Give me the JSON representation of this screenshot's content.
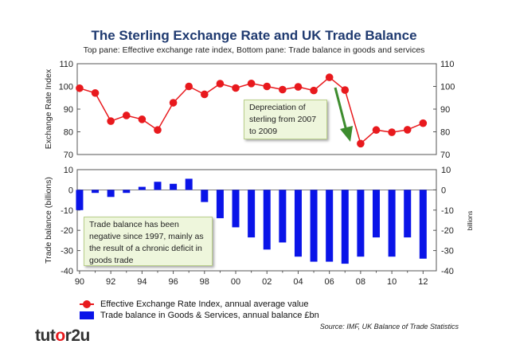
{
  "title": "The Sterling Exchange Rate and UK Trade Balance",
  "subtitle": "Top pane: Effective exchange rate index, Bottom pane: Trade balance in goods and services",
  "chart_data": [
    {
      "type": "line",
      "ylabel": "Exchange Rate Index",
      "ylim": [
        70,
        110
      ],
      "yticks": [
        "70",
        "80",
        "90",
        "100",
        "110"
      ],
      "grid": false,
      "x": [
        1990,
        1991,
        1992,
        1993,
        1994,
        1995,
        1996,
        1997,
        1998,
        1999,
        2000,
        2001,
        2002,
        2003,
        2004,
        2005,
        2006,
        2007,
        2008,
        2009,
        2010,
        2011,
        2012
      ],
      "series": [
        {
          "name": "Effective Exchange Rate Index, annual average value",
          "color": "#e8191d",
          "values": [
            99.2,
            97.1,
            84.7,
            87.2,
            85.5,
            80.8,
            92.8,
            100.0,
            96.5,
            101.2,
            99.3,
            101.3,
            100.0,
            98.6,
            99.8,
            98.2,
            104.0,
            98.4,
            74.8,
            80.8,
            79.8,
            80.9,
            83.8
          ]
        }
      ],
      "annotation": "Depreciation of sterling from 2007 to 2009"
    },
    {
      "type": "bar",
      "ylabel": "Trade balance (billions)",
      "ylabel_right": "billions",
      "ylim": [
        -40,
        10
      ],
      "yticks": [
        "-40",
        "-30",
        "-20",
        "-10",
        "0",
        "10"
      ],
      "xticks": [
        "90",
        "92",
        "94",
        "96",
        "98",
        "00",
        "02",
        "04",
        "06",
        "08",
        "10",
        "12"
      ],
      "grid": false,
      "x": [
        1990,
        1991,
        1992,
        1993,
        1994,
        1995,
        1996,
        1997,
        1998,
        1999,
        2000,
        2001,
        2002,
        2003,
        2004,
        2005,
        2006,
        2007,
        2008,
        2009,
        2010,
        2011,
        2012
      ],
      "series": [
        {
          "name": "Trade balance in Goods & Services, annual balance £bn",
          "color": "#0a14e8",
          "values": [
            -10.0,
            -1.5,
            -3.5,
            -1.5,
            1.5,
            4.0,
            3.0,
            5.5,
            -6.0,
            -14.0,
            -18.5,
            -23.5,
            -29.5,
            -26.0,
            -33.0,
            -35.5,
            -35.5,
            -36.5,
            -33.0,
            -23.5,
            -33.0,
            -23.5,
            -34.0
          ]
        }
      ],
      "annotation": "Trade balance has been negative since 1997, mainly as the result of a chronic deficit in goods trade"
    }
  ],
  "legend": [
    "Effective Exchange Rate Index, annual average value",
    "Trade balance in Goods & Services, annual balance £bn"
  ],
  "notes": {
    "depreciation": "Depreciation of sterling from 2007 to 2009",
    "trade": "Trade balance has been negative since 1997, mainly as the result of a chronic deficit in goods trade"
  },
  "source": "Source: IMF, UK Balance of Trade Statistics",
  "logo": {
    "part1": "tut",
    "part2": "o",
    "part3": "r2u"
  },
  "colors": {
    "line": "#e8191d",
    "bar": "#0a14e8",
    "arrow": "#3d8c2e",
    "title": "#1f3a70"
  }
}
